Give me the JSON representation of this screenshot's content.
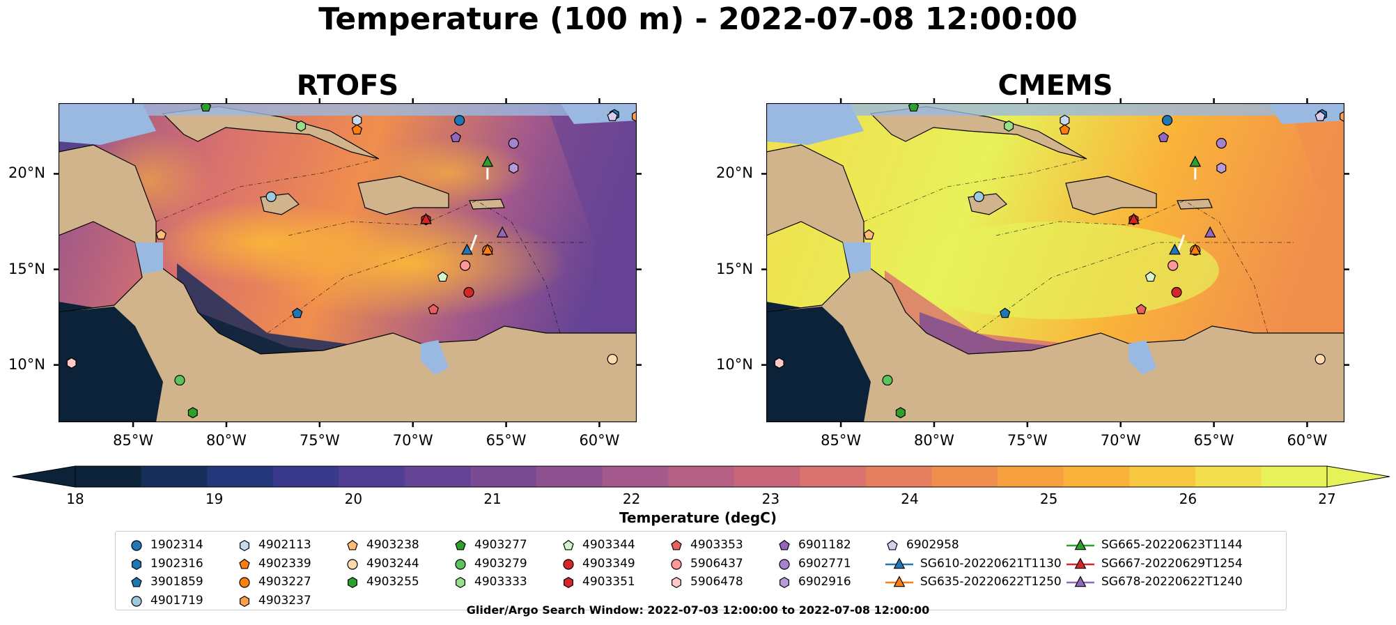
{
  "title": "Temperature (100 m) - 2022-07-08 12:00:00",
  "panels": [
    {
      "name": "RTOFS"
    },
    {
      "name": "CMEMS"
    }
  ],
  "axes": {
    "lon_ticks": [
      "85°W",
      "80°W",
      "75°W",
      "70°W",
      "65°W",
      "60°W"
    ],
    "lat_ticks": [
      "20°N",
      "15°N",
      "10°N"
    ],
    "lon_range": [
      -89,
      -58
    ],
    "lat_range": [
      7,
      23.7
    ]
  },
  "colorbar": {
    "label": "Temperature (degC)",
    "ticks": [
      "18",
      "19",
      "20",
      "21",
      "22",
      "23",
      "24",
      "25",
      "26",
      "27"
    ],
    "range": [
      18,
      27
    ],
    "colors": [
      "#0b2238",
      "#152e5a",
      "#233679",
      "#3a3a8c",
      "#4f3e93",
      "#654395",
      "#7a4a93",
      "#8e5190",
      "#a3598b",
      "#b66083",
      "#c8677a",
      "#d9716e",
      "#e67f5e",
      "#f08e4d",
      "#f7a03f",
      "#fab33a",
      "#f8c843",
      "#f2de4e",
      "#e7f15a"
    ]
  },
  "legend": {
    "items": [
      {
        "label": "1902314",
        "marker": "circle",
        "color": "#1f77b4"
      },
      {
        "label": "1902316",
        "marker": "hexagon",
        "color": "#1f77b4"
      },
      {
        "label": "3901859",
        "marker": "pentagon",
        "color": "#1f77b4"
      },
      {
        "label": "4901719",
        "marker": "circle",
        "color": "#9ecae1"
      },
      {
        "label": "4902113",
        "marker": "hexagon",
        "color": "#c6dbef"
      },
      {
        "label": "4902339",
        "marker": "pentagon",
        "color": "#ff7f0e"
      },
      {
        "label": "4903227",
        "marker": "circle",
        "color": "#ff7f0e"
      },
      {
        "label": "4903237",
        "marker": "hexagon",
        "color": "#ff9f4a"
      },
      {
        "label": "4903238",
        "marker": "pentagon",
        "color": "#ffbb78"
      },
      {
        "label": "4903244",
        "marker": "circle",
        "color": "#ffdab0"
      },
      {
        "label": "4903255",
        "marker": "hexagon",
        "color": "#2ca02c"
      },
      {
        "label": "4903277",
        "marker": "pentagon",
        "color": "#2ca02c"
      },
      {
        "label": "4903279",
        "marker": "circle",
        "color": "#5cc35c"
      },
      {
        "label": "4903333",
        "marker": "hexagon",
        "color": "#98df8a"
      },
      {
        "label": "4903344",
        "marker": "pentagon",
        "color": "#d5f5cc"
      },
      {
        "label": "4903349",
        "marker": "circle",
        "color": "#d62728"
      },
      {
        "label": "4903351",
        "marker": "hexagon",
        "color": "#d62728"
      },
      {
        "label": "4903353",
        "marker": "pentagon",
        "color": "#e8605e"
      },
      {
        "label": "5906437",
        "marker": "circle",
        "color": "#ff9896"
      },
      {
        "label": "5906478",
        "marker": "hexagon",
        "color": "#ffc9c8"
      },
      {
        "label": "6901182",
        "marker": "pentagon",
        "color": "#9467bd"
      },
      {
        "label": "6902771",
        "marker": "circle",
        "color": "#a783cf"
      },
      {
        "label": "6902916",
        "marker": "hexagon",
        "color": "#b99ad9"
      },
      {
        "label": "6902958",
        "marker": "pentagon",
        "color": "#dccbf0"
      },
      {
        "label": "SG610-20220621T1130",
        "marker": "triangle-line",
        "color": "#1f77b4"
      },
      {
        "label": "SG635-20220622T1250",
        "marker": "triangle-line",
        "color": "#ff7f0e"
      },
      {
        "label": "SG665-20220623T1144",
        "marker": "triangle-line",
        "color": "#2ca02c"
      },
      {
        "label": "SG667-20220629T1254",
        "marker": "triangle-line",
        "color": "#d62728"
      },
      {
        "label": "SG678-20220622T1240",
        "marker": "triangle-line",
        "color": "#9467bd"
      }
    ]
  },
  "footnote": "Glider/Argo Search Window: 2022-07-03 12:00:00 to 2022-07-08 12:00:00"
}
